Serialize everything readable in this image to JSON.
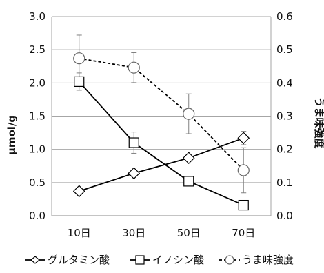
{
  "chart_data": {
    "type": "line",
    "categories": [
      "10日",
      "30日",
      "50日",
      "70日"
    ],
    "ylabel": "μmol/g",
    "y2label": "うま味強度",
    "ylim": [
      0,
      3.0
    ],
    "y2lim": [
      0,
      0.6
    ],
    "y_ticks": [
      "0.0",
      "0.5",
      "1.0",
      "1.5",
      "2.0",
      "2.5",
      "3.0"
    ],
    "y2_ticks": [
      "0.0",
      "0.1",
      "0.2",
      "0.3",
      "0.4",
      "0.5",
      "0.6"
    ],
    "grid": true,
    "legend_position": "bottom",
    "series": [
      {
        "name": "グルタミン酸",
        "axis": "left",
        "marker": "diamond",
        "line": "solid",
        "values": [
          0.37,
          0.64,
          0.87,
          1.17
        ],
        "errors": [
          0,
          0,
          0,
          0.1
        ]
      },
      {
        "name": "イノシン酸",
        "axis": "left",
        "marker": "square",
        "line": "solid",
        "values": [
          2.02,
          1.1,
          0.52,
          0.16
        ],
        "errors": [
          0.13,
          0.16,
          0,
          0
        ]
      },
      {
        "name": "うま味強度",
        "axis": "right",
        "marker": "circle",
        "line": "dashed",
        "values": [
          0.474,
          0.446,
          0.307,
          0.137
        ],
        "errors": [
          0.07,
          0.045,
          0.06,
          0.068
        ]
      }
    ]
  }
}
